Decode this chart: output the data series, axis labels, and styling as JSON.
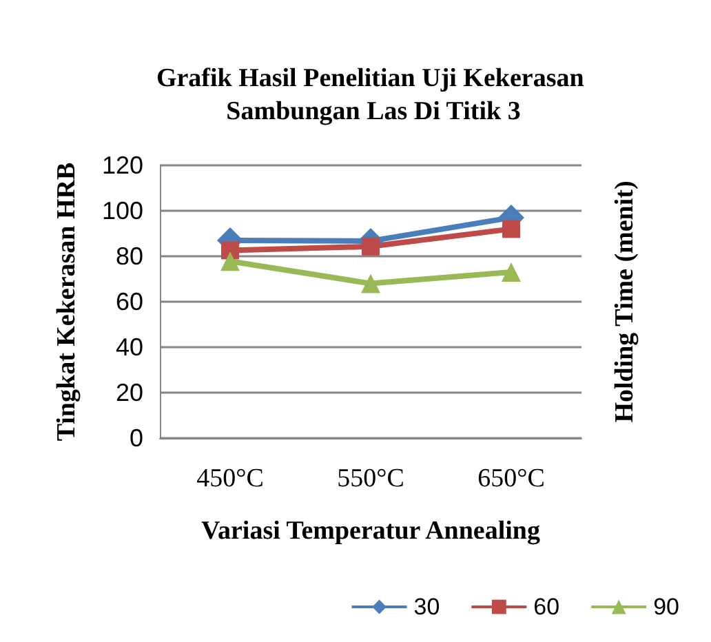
{
  "chart_data": {
    "type": "line",
    "title": "Grafik Hasil Penelitian Uji Kekerasan Sambungan Las Di Titik 3",
    "xlabel": "Variasi Temperatur Annealing",
    "ylabel": "Tingkat Kekerasan HRB",
    "y2label": "Holding Time (menit)",
    "categories": [
      "450°C",
      "550°C",
      "650°C"
    ],
    "series": [
      {
        "name": "30",
        "color": "#4a7ebb",
        "marker": "diamond",
        "values": [
          87,
          86.7,
          97
        ]
      },
      {
        "name": "60",
        "color": "#be4b48",
        "marker": "square",
        "values": [
          82.6,
          84.3,
          92
        ]
      },
      {
        "name": "90",
        "color": "#98b954",
        "marker": "triangle",
        "values": [
          77.8,
          68,
          73
        ]
      }
    ],
    "ylim": [
      0,
      120
    ],
    "yticks": [
      0,
      20,
      40,
      60,
      80,
      100,
      120
    ],
    "grid": "y",
    "legend": "bottom right",
    "line_style": "solid"
  }
}
